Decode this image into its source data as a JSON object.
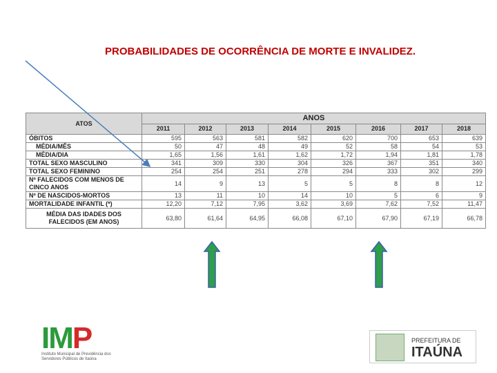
{
  "title": "PROBABILIDADES DE OCORRÊNCIA DE MORTE E INVALIDEZ.",
  "table": {
    "row_header": "ATOS",
    "group_header": "ANOS",
    "columns": [
      "2011",
      "2012",
      "2013",
      "2014",
      "2015",
      "2016",
      "2017",
      "2018"
    ],
    "rows": [
      {
        "label": "ÓBITOS",
        "cells": [
          "595",
          "563",
          "581",
          "582",
          "620",
          "700",
          "653",
          "639"
        ]
      },
      {
        "label": "MÉDIA/MÊS",
        "cells": [
          "50",
          "47",
          "48",
          "49",
          "52",
          "58",
          "54",
          "53"
        ]
      },
      {
        "label": "MÉDIA/DIA",
        "cells": [
          "1,65",
          "1,56",
          "1,61",
          "1,62",
          "1,72",
          "1,94",
          "1,81",
          "1,78"
        ]
      },
      {
        "label": "TOTAL SEXO MASCULINO",
        "cells": [
          "341",
          "309",
          "330",
          "304",
          "326",
          "367",
          "351",
          "340"
        ]
      },
      {
        "label": "TOTAL SEXO FEMININO",
        "cells": [
          "254",
          "254",
          "251",
          "278",
          "294",
          "333",
          "302",
          "299"
        ]
      },
      {
        "label": "Nº FALECIDOS COM MENOS DE CINCO ANOS",
        "cells": [
          "14",
          "9",
          "13",
          "5",
          "5",
          "8",
          "8",
          "12"
        ]
      },
      {
        "label": "Nº DE NASCIDOS-MORTOS",
        "cells": [
          "13",
          "11",
          "10",
          "14",
          "10",
          "5",
          "6",
          "9"
        ]
      },
      {
        "label": "MORTALIDADE INFANTIL (*)",
        "cells": [
          "12,20",
          "7,12",
          "7,95",
          "3,62",
          "3,69",
          "7,62",
          "7,52",
          "11,47"
        ]
      },
      {
        "label": "MÉDIA DAS IDADES DOS FALECIDOS (EM ANOS)",
        "cells": [
          "63,80",
          "61,64",
          "64,95",
          "66,08",
          "67,10",
          "67,90",
          "67,19",
          "66,78"
        ]
      }
    ]
  },
  "logo_left": {
    "name": "IMP",
    "caption": "Instituto Municipal de Previdência dos Servidores Públicos de Itaúna"
  },
  "logo_right": {
    "line1": "PREFEITURA DE",
    "line2": "ITAÚNA"
  }
}
